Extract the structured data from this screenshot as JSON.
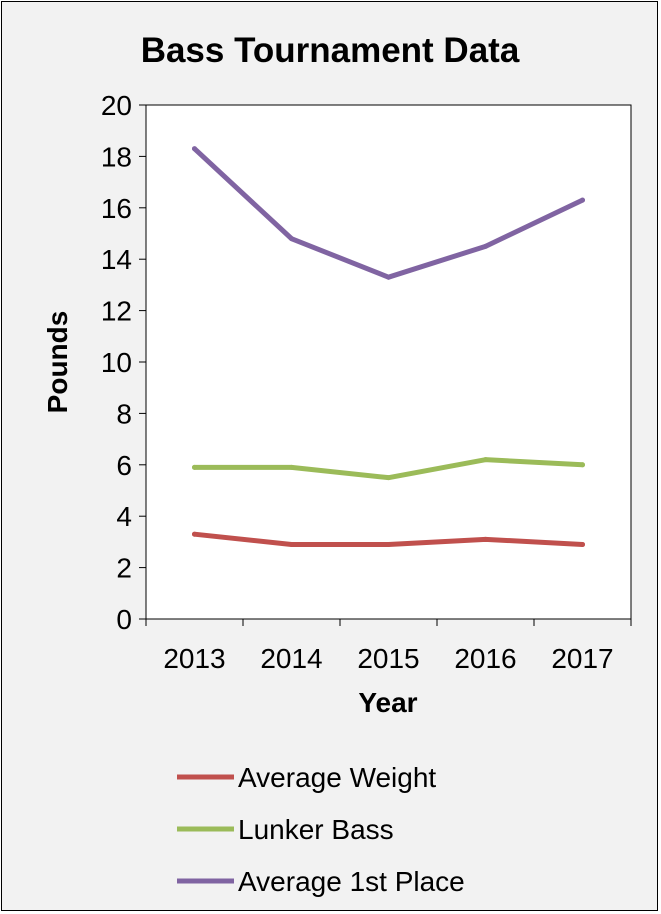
{
  "chart_data": {
    "type": "line",
    "title": "Bass Tournament Data",
    "xlabel": "Year",
    "ylabel": "Pounds",
    "categories": [
      "2013",
      "2014",
      "2015",
      "2016",
      "2017"
    ],
    "ylim": [
      0,
      20
    ],
    "yticks": [
      0,
      2,
      4,
      6,
      8,
      10,
      12,
      14,
      16,
      18,
      20
    ],
    "grid": true,
    "legend_position": "bottom",
    "series": [
      {
        "name": "Average Weight",
        "color": "#c0504d",
        "values": [
          3.3,
          2.9,
          2.9,
          3.1,
          2.9
        ]
      },
      {
        "name": "Lunker Bass",
        "color": "#9bbb59",
        "values": [
          5.9,
          5.9,
          5.5,
          6.2,
          6.0
        ]
      },
      {
        "name": "Average 1st Place",
        "color": "#8064a2",
        "values": [
          18.3,
          14.8,
          13.3,
          14.5,
          16.3
        ]
      }
    ]
  }
}
